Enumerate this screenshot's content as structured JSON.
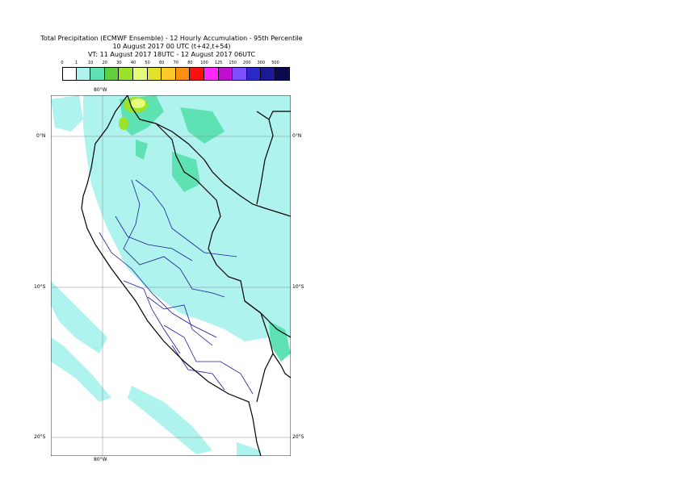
{
  "title": {
    "line1": "Total Precipitation (ECMWF Ensemble) - 12 Hourly Accumulation - 95th Percentile",
    "line2": "10 August 2017 00 UTC (t+42,t+54)",
    "line3": "VT: 11 August 2017 18UTC - 12 August 2017 06UTC"
  },
  "legend": {
    "ticks": [
      "0",
      "1",
      "10",
      "20",
      "30",
      "40",
      "50",
      "60",
      "70",
      "80",
      "100",
      "125",
      "150",
      "200",
      "300",
      "500"
    ],
    "colors": [
      "#ffffff",
      "#aef3ee",
      "#5ee2b4",
      "#5fcf3f",
      "#9ae32a",
      "#e6fc7a",
      "#e2e12a",
      "#fcc82a",
      "#fd8f12",
      "#fb0f0f",
      "#ff28ff",
      "#c00fd2",
      "#7c50ff",
      "#2b28c8",
      "#1a1a96",
      "#0a0a50"
    ]
  },
  "map": {
    "lon_label_top": "80°W",
    "lon_label_bottom": "80°W",
    "lat_labels": {
      "n0_left": "0°N",
      "n0_right": "0°N",
      "s10_left": "10°S",
      "s10_right": "10°S",
      "s20_left": "20°S",
      "s20_right": "20°S"
    },
    "colors": {
      "land_border": "#000000",
      "admin_border": "#1a1aa0",
      "ocean": "#ffffff",
      "light_rain": "#aef3ee",
      "moderate_rain": "#5ee2b4"
    }
  }
}
